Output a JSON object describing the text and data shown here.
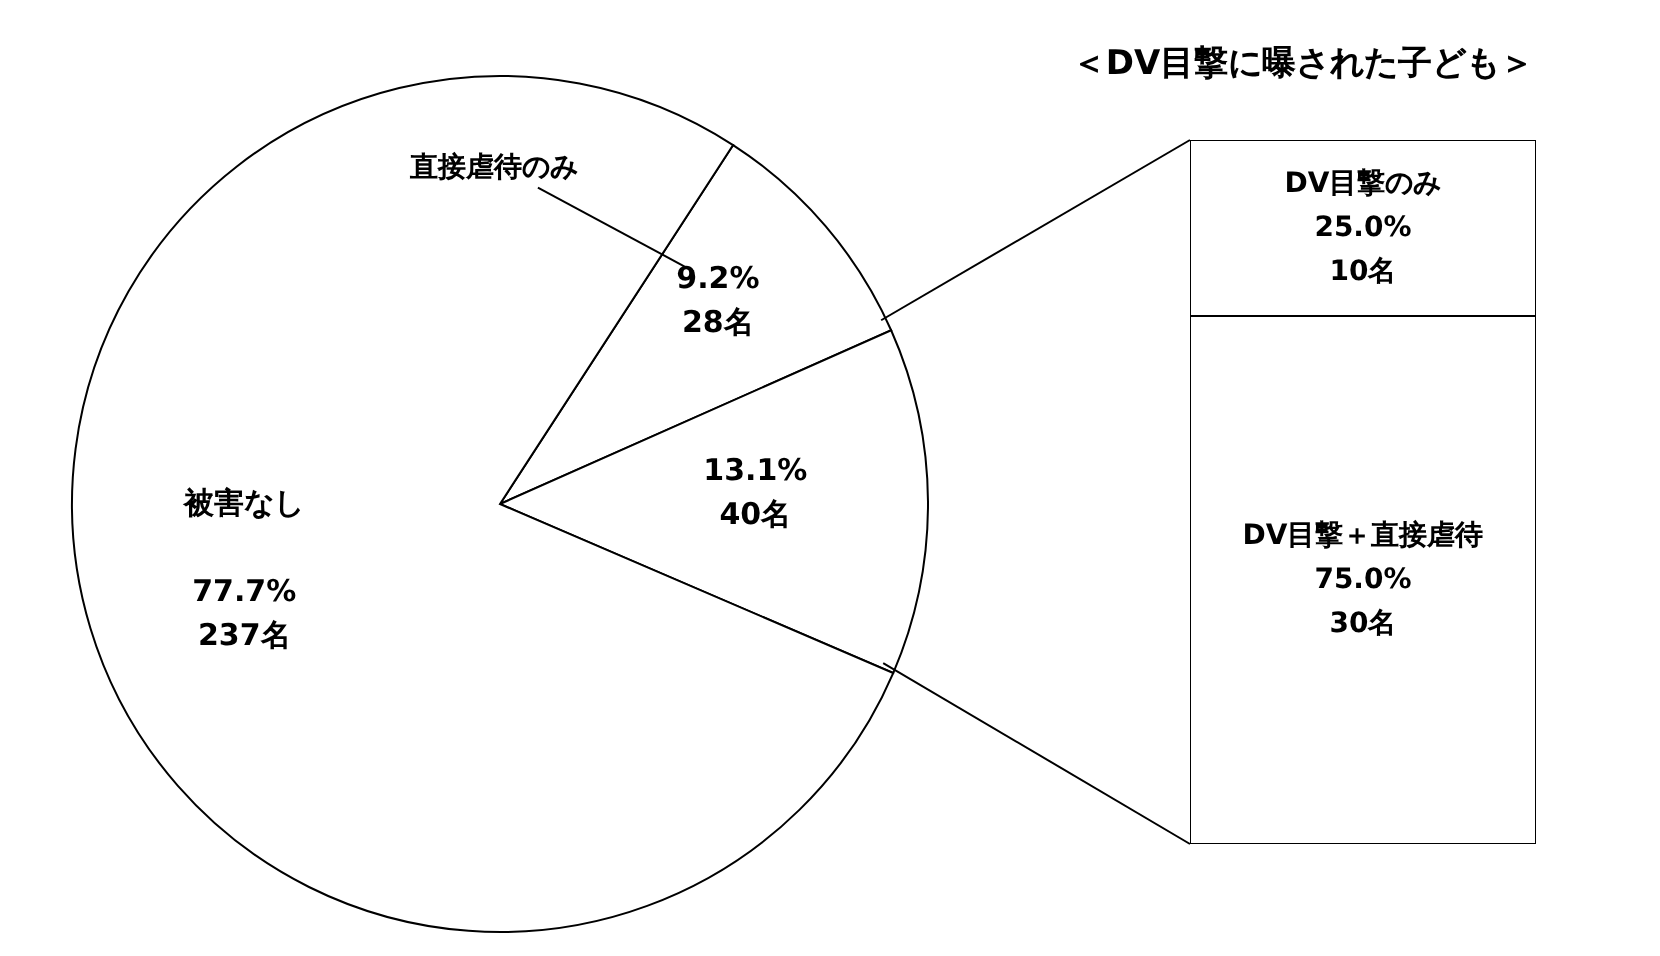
{
  "chart_data": [
    {
      "type": "pie",
      "categories": [
        "直接虐待のみ",
        null,
        "被害なし"
      ],
      "values": [
        28,
        40,
        237
      ],
      "value_labels": [
        "9.2%\n28名",
        "13.1%\n40名",
        "77.7%\n237名"
      ],
      "colors": [
        "#ffffff",
        "#ffffff",
        "#ffffff"
      ]
    },
    {
      "type": "bar",
      "title": "＜DV目撃に曝された子ども＞",
      "categories": [
        null
      ],
      "stacked": true,
      "series": [
        {
          "name": "DV目撃＋直接虐待",
          "color": "#ffffff",
          "values": [
            30
          ],
          "value_labels": [
            "75.0%\n30名"
          ]
        },
        {
          "name": "DV目撃のみ",
          "color": "#ffffff",
          "values": [
            10
          ],
          "value_labels": [
            "25.0%\n10名"
          ]
        }
      ]
    }
  ]
}
